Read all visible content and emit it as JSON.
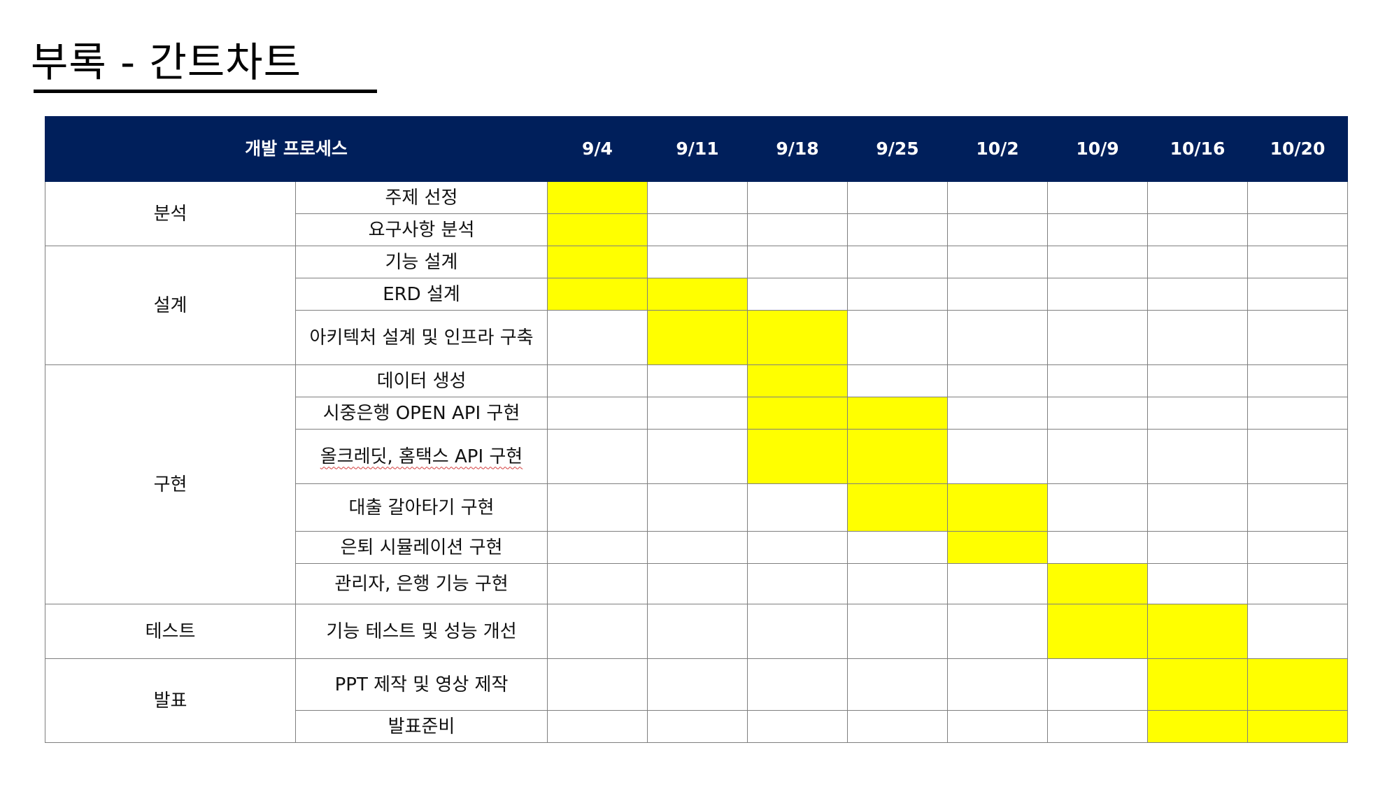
{
  "slide": {
    "title": "부록 - 간트차트"
  },
  "gantt": {
    "header_process": "개발 프로세스",
    "weeks": [
      "9/4",
      "9/11",
      "9/18",
      "9/25",
      "10/2",
      "10/9",
      "10/16",
      "10/20"
    ],
    "highlight_color": "#ffff00",
    "header_color": "#001f5b",
    "phases": [
      {
        "name": "분석",
        "tasks": [
          {
            "label": "주제 선정",
            "active": [
              0
            ]
          },
          {
            "label": "요구사항 분석",
            "active": [
              0
            ]
          }
        ]
      },
      {
        "name": "설계",
        "tasks": [
          {
            "label": "기능 설계",
            "active": [
              0
            ]
          },
          {
            "label": "ERD 설계",
            "active": [
              0,
              1
            ]
          },
          {
            "label": "아키텍처 설계 및 인프라 구축",
            "active": [
              1,
              2
            ]
          }
        ]
      },
      {
        "name": "구현",
        "tasks": [
          {
            "label": "데이터 생성",
            "active": [
              2
            ]
          },
          {
            "label": "시중은행 OPEN API 구현",
            "active": [
              2,
              3
            ]
          },
          {
            "label": "올크레딧, 홈택스 API 구현",
            "active": [
              2,
              3
            ]
          },
          {
            "label": "대출 갈아타기 구현",
            "active": [
              3,
              4
            ]
          },
          {
            "label": "은퇴 시뮬레이션 구현",
            "active": [
              4
            ]
          },
          {
            "label": "관리자, 은행 기능 구현",
            "active": [
              5
            ]
          }
        ]
      },
      {
        "name": "테스트",
        "tasks": [
          {
            "label": "기능 테스트 및 성능 개선",
            "active": [
              5,
              6
            ]
          }
        ]
      },
      {
        "name": "발표",
        "tasks": [
          {
            "label": "PPT 제작 및 영상 제작",
            "active": [
              6,
              7
            ]
          },
          {
            "label": "발표준비",
            "active": [
              6,
              7
            ]
          }
        ]
      }
    ]
  }
}
